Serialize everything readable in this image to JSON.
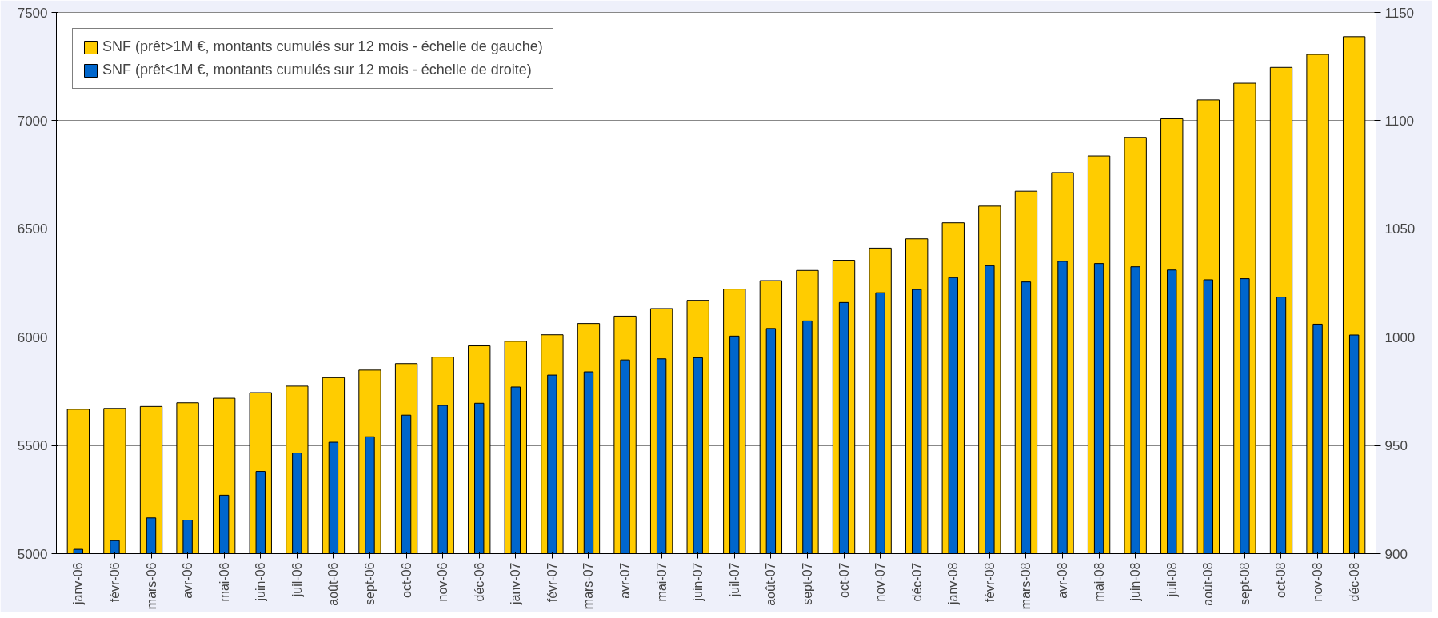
{
  "chart_data": {
    "type": "bar",
    "categories": [
      "janv-06",
      "févr-06",
      "mars-06",
      "avr-06",
      "mai-06",
      "juin-06",
      "juil-06",
      "août-06",
      "sept-06",
      "oct-06",
      "nov-06",
      "déc-06",
      "janv-07",
      "févr-07",
      "mars-07",
      "avr-07",
      "mai-07",
      "juin-07",
      "juil-07",
      "août-07",
      "sept-07",
      "oct-07",
      "nov-07",
      "déc-07",
      "janv-08",
      "févr-08",
      "mars-08",
      "avr-08",
      "mai-08",
      "juin-08",
      "juil-08",
      "août-08",
      "sept-08",
      "oct-08",
      "nov-08",
      "déc-08"
    ],
    "series": [
      {
        "name": "SNF (prêt>1M €, montants cumulés sur 12 mois - échelle de gauche)",
        "color": "#ffcc00",
        "values": [
          5667,
          5671,
          5680,
          5697,
          5718,
          5744,
          5774,
          5813,
          5848,
          5878,
          5908,
          5960,
          5981,
          6011,
          6063,
          6097,
          6132,
          6170,
          6222,
          6261,
          6308,
          6355,
          6411,
          6454,
          6528,
          6605,
          6674,
          6760,
          6837,
          6923,
          7009,
          7096,
          7173,
          7246,
          7306,
          7388
        ]
      },
      {
        "name": "SNF (prêt<1M €, montants cumulés sur 12 mois - échelle de droite)",
        "color": "#0066cc",
        "axis": "y2",
        "values": [
          902,
          906,
          916.5,
          915.5,
          927,
          938,
          946.5,
          951.5,
          954,
          964,
          968.5,
          969.5,
          977,
          982.5,
          984,
          989.5,
          990,
          990.5,
          1000.5,
          1004,
          1007.5,
          1016,
          1020.5,
          1022,
          1027.5,
          1033,
          1025.5,
          1035,
          1034,
          1032.5,
          1031,
          1026.5,
          1027,
          1018.5,
          1006,
          1001
        ]
      }
    ],
    "ylim": [
      5000,
      7500
    ],
    "yticks": [
      5000,
      5500,
      6000,
      6500,
      7000,
      7500
    ],
    "y2lim": [
      900,
      1150
    ],
    "y2ticks": [
      900,
      950,
      1000,
      1050,
      1100,
      1150
    ],
    "grid": "y",
    "legend": "top left"
  }
}
